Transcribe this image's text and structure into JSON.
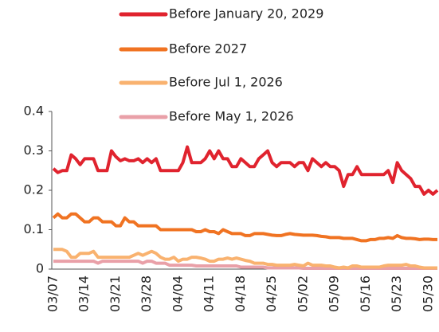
{
  "chart_data": {
    "type": "line",
    "categories": [
      "03/07",
      null,
      null,
      null,
      null,
      null,
      null,
      "03/14",
      null,
      null,
      null,
      null,
      null,
      null,
      "03/21",
      null,
      null,
      null,
      null,
      null,
      null,
      "03/28",
      null,
      null,
      null,
      null,
      null,
      null,
      "04/04",
      null,
      null,
      null,
      null,
      null,
      null,
      "04/11",
      null,
      null,
      null,
      null,
      null,
      null,
      "04/18",
      null,
      null,
      null,
      null,
      null,
      null,
      "04/25",
      null,
      null,
      null,
      null,
      null,
      null,
      "05/02",
      null,
      null,
      null,
      null,
      null,
      null,
      "05/09",
      null,
      null,
      null,
      null,
      null,
      null,
      "05/16",
      null,
      null,
      null,
      null,
      null,
      null,
      "05/23",
      null,
      null,
      null,
      null,
      null,
      null,
      "05/30",
      null,
      null
    ],
    "series": [
      {
        "name": "Before January 20, 2029",
        "color": "#e0232e",
        "values": [
          0.255,
          0.245,
          0.25,
          0.25,
          0.29,
          0.28,
          0.265,
          0.28,
          0.28,
          0.28,
          0.25,
          0.25,
          0.25,
          0.3,
          0.285,
          0.275,
          0.28,
          0.275,
          0.275,
          0.28,
          0.27,
          0.28,
          0.27,
          0.28,
          0.25,
          0.25,
          0.25,
          0.25,
          0.25,
          0.27,
          0.31,
          0.27,
          0.27,
          0.27,
          0.28,
          0.3,
          0.28,
          0.3,
          0.28,
          0.28,
          0.26,
          0.26,
          0.28,
          0.27,
          0.26,
          0.26,
          0.28,
          0.29,
          0.3,
          0.27,
          0.26,
          0.27,
          0.27,
          0.27,
          0.26,
          0.27,
          0.27,
          0.25,
          0.28,
          0.27,
          0.26,
          0.27,
          0.26,
          0.26,
          0.25,
          0.21,
          0.24,
          0.24,
          0.26,
          0.24,
          0.24,
          0.24,
          0.24,
          0.24,
          0.24,
          0.25,
          0.22,
          0.27,
          0.25,
          0.24,
          0.23,
          0.21,
          0.21,
          0.19,
          0.2,
          0.19,
          0.2
        ]
      },
      {
        "name": "Before 2027",
        "color": "#f07322",
        "values": [
          0.13,
          0.14,
          0.13,
          0.13,
          0.14,
          0.14,
          0.13,
          0.12,
          0.12,
          0.13,
          0.13,
          0.12,
          0.12,
          0.12,
          0.11,
          0.11,
          0.13,
          0.12,
          0.12,
          0.11,
          0.11,
          0.11,
          0.11,
          0.11,
          0.1,
          0.1,
          0.1,
          0.1,
          0.1,
          0.1,
          0.1,
          0.1,
          0.095,
          0.095,
          0.1,
          0.095,
          0.095,
          0.09,
          0.1,
          0.095,
          0.09,
          0.09,
          0.09,
          0.085,
          0.085,
          0.09,
          0.09,
          0.09,
          0.088,
          0.086,
          0.085,
          0.085,
          0.088,
          0.09,
          0.088,
          0.087,
          0.086,
          0.086,
          0.086,
          0.085,
          0.083,
          0.082,
          0.08,
          0.08,
          0.08,
          0.078,
          0.078,
          0.078,
          0.075,
          0.072,
          0.072,
          0.075,
          0.075,
          0.078,
          0.078,
          0.08,
          0.078,
          0.085,
          0.08,
          0.078,
          0.078,
          0.077,
          0.075,
          0.076,
          0.076,
          0.075,
          0.075
        ]
      },
      {
        "name": "Before Jul 1, 2026",
        "color": "#f9b26f",
        "values": [
          0.05,
          0.05,
          0.05,
          0.045,
          0.03,
          0.03,
          0.04,
          0.04,
          0.04,
          0.045,
          0.03,
          0.03,
          0.03,
          0.03,
          0.03,
          0.03,
          0.03,
          0.03,
          0.035,
          0.04,
          0.035,
          0.04,
          0.045,
          0.04,
          0.03,
          0.025,
          0.025,
          0.03,
          0.02,
          0.025,
          0.025,
          0.03,
          0.03,
          0.028,
          0.025,
          0.02,
          0.02,
          0.025,
          0.025,
          0.028,
          0.025,
          0.028,
          0.025,
          0.022,
          0.02,
          0.015,
          0.015,
          0.015,
          0.012,
          0.012,
          0.01,
          0.01,
          0.01,
          0.01,
          0.012,
          0.01,
          0.008,
          0.015,
          0.01,
          0.01,
          0.01,
          0.008,
          0.008,
          0.005,
          0.003,
          0.005,
          0.003,
          0.008,
          0.008,
          0.005,
          0.005,
          0.005,
          0.005,
          0.005,
          0.008,
          0.01,
          0.01,
          0.01,
          0.01,
          0.012,
          0.008,
          0.008,
          0.005,
          0.003,
          0.003,
          0.003,
          0.003
        ]
      },
      {
        "name": "Before May 1, 2026",
        "color": "#e9a0a8",
        "values": [
          0.02,
          0.02,
          0.02,
          0.02,
          0.02,
          0.02,
          0.02,
          0.02,
          0.02,
          0.02,
          0.015,
          0.02,
          0.02,
          0.02,
          0.02,
          0.02,
          0.02,
          0.02,
          0.02,
          0.02,
          0.015,
          0.02,
          0.02,
          0.015,
          0.015,
          0.015,
          0.01,
          0.01,
          0.01,
          0.01,
          0.01,
          0.01,
          0.008,
          0.008,
          0.008,
          0.008,
          0.008,
          0.008,
          0.008,
          0.008,
          0.008,
          0.008,
          0.005,
          0.005,
          0.005,
          0.005,
          0.005,
          0.005,
          0.003,
          0.003,
          0.003,
          0.003,
          0.003,
          0.003,
          0.003,
          0.003,
          0.002,
          0.002,
          0.002,
          0.002,
          0.002,
          0.002,
          0.002,
          0.002,
          0.002,
          0.002,
          0.002,
          0.002,
          0.002,
          0.002,
          0.002,
          0.002,
          0.002,
          0.002,
          0.002,
          0.002,
          0.002,
          0.002,
          0.002,
          0.002,
          0.002,
          0.002,
          0.002,
          0.002,
          0.002,
          0.002,
          0.002
        ]
      }
    ],
    "ylim": [
      0,
      0.4
    ],
    "yticks": [
      0,
      0.1,
      0.2,
      0.3,
      0.4
    ],
    "grid": false,
    "legend": "top"
  }
}
